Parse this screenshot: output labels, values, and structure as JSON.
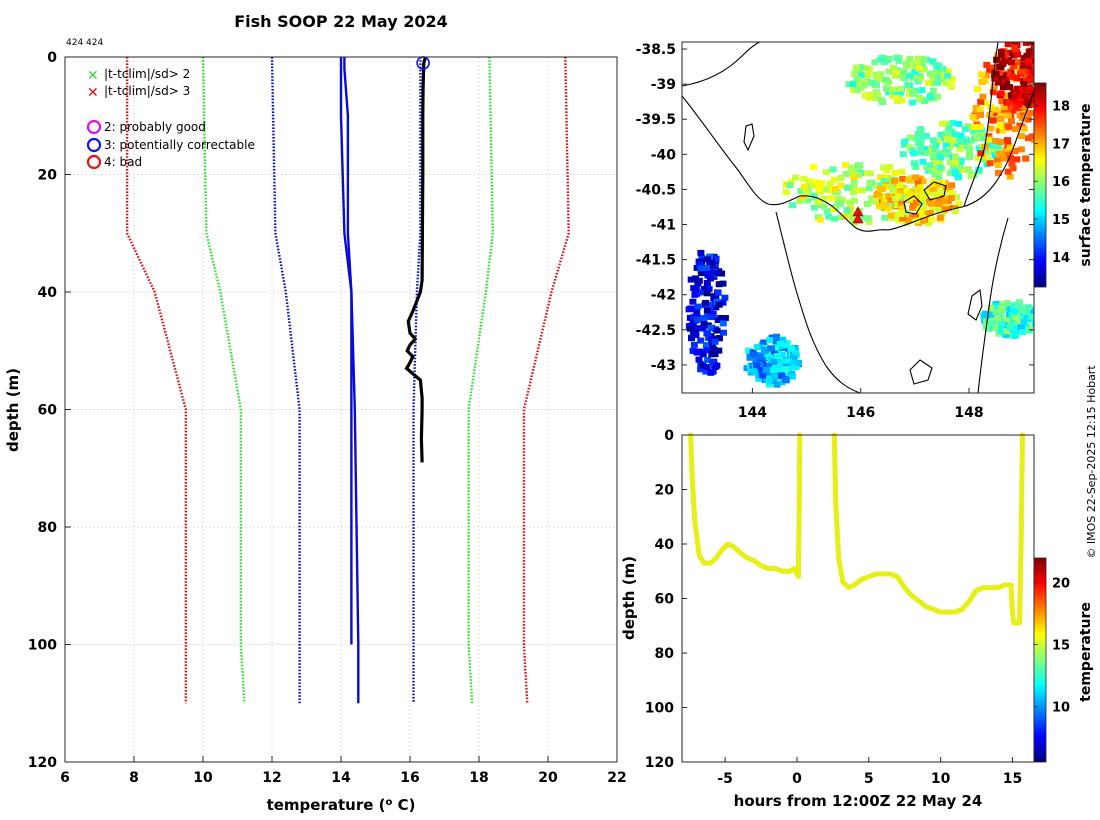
{
  "figure": {
    "title": "Fish SOOP 22 May 2024",
    "id_label": "424 424",
    "credit": "© IMOS 22-Sep-2025 12:15 Hobart"
  },
  "colors": {
    "clim2": "#33dd33",
    "clim3": "#dd1111",
    "clim_mean": "#1010bb",
    "qc_good": "#e010e0",
    "qc_corr": "#1515e0",
    "qc_bad": "#ee1111",
    "profile": "#000000",
    "secondary": "#0a0ad8",
    "track": "#e6ef16",
    "land": "#000000"
  },
  "legend": {
    "items": [
      {
        "marker": "x",
        "color": "#33dd33",
        "label": "|t-tclim|/sd> 2"
      },
      {
        "marker": "x",
        "color": "#dd1111",
        "label": "|t-tclim|/sd> 3"
      },
      {
        "marker": "o",
        "color": "#e010e0",
        "label": "2: probably good"
      },
      {
        "marker": "o",
        "color": "#1515e0",
        "label": "3: potentially correctable"
      },
      {
        "marker": "o",
        "color": "#ee1111",
        "label": "4: bad"
      }
    ]
  },
  "chart_data": [
    {
      "type": "line",
      "name": "profile",
      "xlabel": "temperature (o C)",
      "ylabel": "depth (m)",
      "xlim": [
        6,
        22
      ],
      "ylim": [
        0,
        120
      ],
      "y_reversed": true,
      "xticks": [
        6,
        8,
        10,
        12,
        14,
        16,
        18,
        20,
        22
      ],
      "yticks": [
        0,
        20,
        40,
        60,
        80,
        100,
        120
      ],
      "grid": true,
      "climatology_depths": [
        0,
        30,
        40,
        60,
        100,
        110
      ],
      "series": [
        {
          "name": "-3 sd",
          "style": "dotted",
          "color": "#dd1111",
          "values": [
            7.8,
            7.8,
            8.6,
            9.5,
            9.5,
            9.5
          ]
        },
        {
          "name": "-2 sd",
          "style": "dotted",
          "color": "#33dd33",
          "values": [
            10.0,
            10.1,
            10.5,
            11.1,
            11.1,
            11.2
          ]
        },
        {
          "name": "-1 sd",
          "style": "dotted",
          "color": "#1010bb",
          "values": [
            12.0,
            12.1,
            12.4,
            12.8,
            12.8,
            12.8
          ]
        },
        {
          "name": "+1 sd",
          "style": "dotted",
          "color": "#1010bb",
          "values": [
            16.3,
            16.3,
            16.2,
            16.1,
            16.1,
            16.1
          ]
        },
        {
          "name": "+2 sd",
          "style": "dotted",
          "color": "#33dd33",
          "values": [
            18.3,
            18.4,
            18.2,
            17.7,
            17.7,
            17.8
          ]
        },
        {
          "name": "+3 sd",
          "style": "dotted",
          "color": "#dd1111",
          "values": [
            20.5,
            20.6,
            20.1,
            19.3,
            19.3,
            19.4
          ]
        },
        {
          "name": "climatology mean",
          "style": "solid",
          "color": "#0a0ad8",
          "depths": [
            0,
            2,
            10,
            30,
            40,
            60,
            100,
            110
          ],
          "values": [
            14.1,
            14.1,
            14.2,
            14.2,
            14.3,
            14.4,
            14.5,
            14.5
          ]
        },
        {
          "name": "secondary profile",
          "style": "solid",
          "color": "#0a0ad8",
          "depths": [
            0,
            10,
            30,
            40,
            60,
            100
          ],
          "values": [
            14.0,
            14.0,
            14.1,
            14.3,
            14.3,
            14.3
          ]
        },
        {
          "name": "XBT profile",
          "style": "solid",
          "color": "#000000",
          "depths": [
            0,
            1,
            5,
            10,
            20,
            30,
            38,
            40,
            43,
            45,
            47,
            48,
            49,
            50,
            51,
            52,
            53,
            54,
            55,
            58,
            60,
            65,
            69
          ],
          "values": [
            16.45,
            16.4,
            16.38,
            16.37,
            16.37,
            16.36,
            16.35,
            16.3,
            16.1,
            15.95,
            16.0,
            16.15,
            16.0,
            15.92,
            16.08,
            16.0,
            15.9,
            16.1,
            16.3,
            16.35,
            16.35,
            16.33,
            16.35
          ]
        }
      ],
      "qc_flags": [
        {
          "flag": 3,
          "temperature": 16.38,
          "depth": 0.5
        }
      ]
    },
    {
      "type": "heatmap",
      "name": "surface temperature map",
      "xlim": [
        142.7,
        149.2
      ],
      "ylim": [
        -43.4,
        -38.4
      ],
      "xticks": [
        144,
        146,
        148
      ],
      "yticks": [
        -38.5,
        -39,
        -39.5,
        -40,
        -40.5,
        -41,
        -41.5,
        -42,
        -42.5,
        -43
      ],
      "colorbar": {
        "label": "surface temperature",
        "range": [
          13.2,
          18.6
        ],
        "ticks": [
          14,
          15,
          16,
          17,
          18
        ]
      },
      "markers": [
        {
          "lon": 146.05,
          "lat": -40.82,
          "color": "#ee1111"
        },
        {
          "lon": 146.05,
          "lat": -40.92,
          "color": "#ee1111"
        }
      ]
    },
    {
      "type": "scatter",
      "name": "time-depth track",
      "xlabel": "hours from 12:00Z 22 May 24",
      "ylabel": "depth (m)",
      "xlim": [
        -8,
        16.5
      ],
      "ylim": [
        0,
        120
      ],
      "y_reversed": true,
      "xticks": [
        -5,
        0,
        5,
        10,
        15
      ],
      "yticks": [
        0,
        20,
        40,
        60,
        80,
        100,
        120
      ],
      "colorbar": {
        "label": "temperature",
        "range": [
          5.5,
          22
        ],
        "ticks": [
          10,
          15,
          20
        ]
      },
      "segments": [
        {
          "x": [
            -7.4,
            -7.3,
            -7.1,
            -6.8,
            -6.5,
            -6.0,
            -5.6,
            -5.2,
            -4.8,
            -4.4,
            -4.0,
            -3.5,
            -3.0,
            -2.5,
            -2.0,
            -1.5,
            -1.0,
            -0.5,
            -0.2,
            0.1,
            0.15,
            0.2
          ],
          "y": [
            0,
            15,
            32,
            44,
            47,
            47,
            45,
            42,
            40,
            41,
            43,
            45,
            46,
            48,
            49,
            49,
            50,
            50,
            49,
            52,
            30,
            0
          ]
        },
        {
          "x": [
            2.6,
            2.7,
            2.9,
            3.2,
            3.6,
            4.0,
            4.5,
            5.0,
            5.5,
            6.0,
            6.5,
            7.0,
            7.5,
            8.0,
            8.5,
            9.0,
            9.5,
            10.0,
            10.5,
            11.0,
            11.5,
            12.0,
            12.5,
            13.0,
            13.5,
            14.0,
            14.5,
            14.9,
            15.0,
            15.1,
            15.5,
            15.6,
            15.7
          ],
          "y": [
            0,
            25,
            45,
            54,
            56,
            55,
            53,
            52,
            51,
            51,
            51,
            52,
            56,
            59,
            61,
            63,
            64,
            65,
            65,
            65,
            64,
            61,
            57,
            56,
            56,
            56,
            55,
            55,
            65,
            69,
            69,
            40,
            0
          ]
        }
      ],
      "color_value": 17.5
    }
  ],
  "map": {
    "ylabels": [
      "-38.5",
      "-39",
      "-39.5",
      "-40",
      "-40.5",
      "-41",
      "-41.5",
      "-42",
      "-42.5",
      "-43"
    ],
    "xlabels": [
      "144",
      "146",
      "148"
    ],
    "cbar_labels": [
      "14",
      "15",
      "16",
      "17",
      "18"
    ],
    "cbar_title": "surface temperature"
  },
  "track": {
    "cbar_labels": [
      "10",
      "15",
      "20"
    ],
    "cbar_title": "temperature"
  }
}
